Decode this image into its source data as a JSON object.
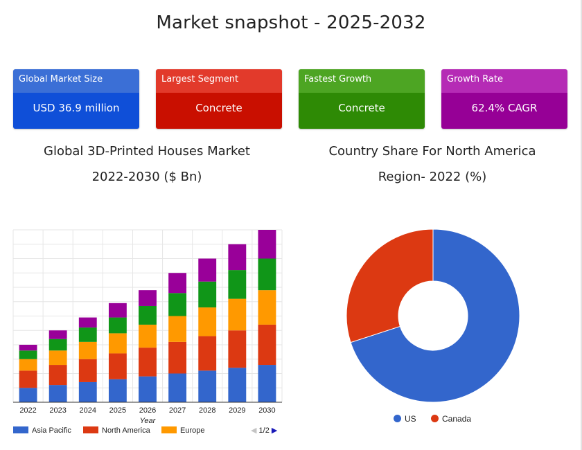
{
  "page": {
    "title": "Market snapshot - 2025-2032"
  },
  "cards": [
    {
      "label": "Global Market Size",
      "value": "USD 36.9 million",
      "head_color": "#3b6fd6",
      "body_color": "#0f4fd8"
    },
    {
      "label": "Largest Segment",
      "value": "Concrete",
      "head_color": "#e23a2b",
      "body_color": "#c90f00"
    },
    {
      "label": "Fastest Growth",
      "value": "Concrete",
      "head_color": "#4da523",
      "body_color": "#2e8a05"
    },
    {
      "label": "Growth Rate",
      "value": "62.4% CAGR",
      "head_color": "#b52bb5",
      "body_color": "#960096"
    }
  ],
  "bar_chart": {
    "title_line1": "Global 3D-Printed Houses Market",
    "title_line2": "2022-2030 ($ Bn)",
    "pager": {
      "text": "1/2",
      "prev": "◀",
      "next": "▶"
    }
  },
  "pie_chart": {
    "title_line1": "Country Share For North America",
    "title_line2": "Region- 2022 (%)"
  },
  "chart_data": [
    {
      "type": "bar",
      "stacked": true,
      "title": "Global 3D-Printed Houses Market 2022-2030 ($ Bn)",
      "xlabel": "Year",
      "ylabel": "",
      "categories": [
        "2022",
        "2023",
        "2024",
        "2025",
        "2026",
        "2027",
        "2028",
        "2029",
        "2030"
      ],
      "ylim": [
        0,
        12
      ],
      "grid": true,
      "legend_position": "bottom",
      "series": [
        {
          "name": "Asia Pacific",
          "color": "#3366cc",
          "values": [
            1.0,
            1.2,
            1.4,
            1.6,
            1.8,
            2.0,
            2.2,
            2.4,
            2.6
          ]
        },
        {
          "name": "North America",
          "color": "#dc3912",
          "values": [
            1.2,
            1.4,
            1.6,
            1.8,
            2.0,
            2.2,
            2.4,
            2.6,
            2.8
          ]
        },
        {
          "name": "Europe",
          "color": "#ff9900",
          "values": [
            0.8,
            1.0,
            1.2,
            1.4,
            1.6,
            1.8,
            2.0,
            2.2,
            2.4
          ]
        },
        {
          "name": "",
          "color": "#109618",
          "values": [
            0.6,
            0.8,
            1.0,
            1.1,
            1.3,
            1.6,
            1.8,
            2.0,
            2.2
          ]
        },
        {
          "name": "",
          "color": "#990099",
          "values": [
            0.4,
            0.6,
            0.7,
            1.0,
            1.1,
            1.4,
            1.6,
            1.8,
            2.0
          ]
        }
      ]
    },
    {
      "type": "pie",
      "donut": true,
      "title": "Country Share For North America Region- 2022 (%)",
      "legend_position": "bottom",
      "labels": [
        "US",
        "Canada"
      ],
      "values": [
        70,
        30
      ],
      "colors": [
        "#3366cc",
        "#dc3912"
      ]
    }
  ]
}
